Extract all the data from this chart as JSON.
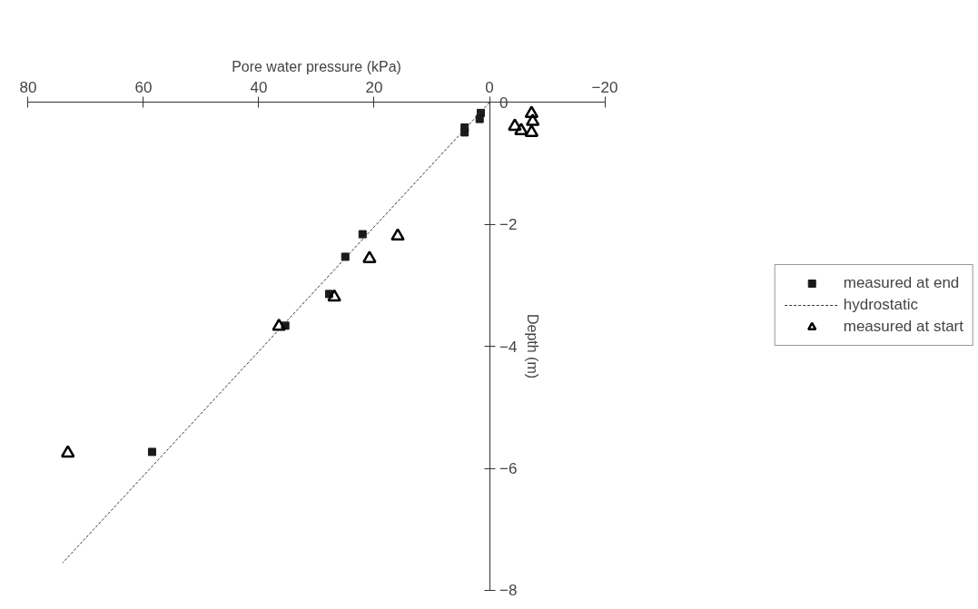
{
  "chart_data": {
    "type": "scatter",
    "xlabel": "Pore water pressure (kPa)",
    "ylabel": "Depth (m)",
    "xlim": [
      80,
      -20
    ],
    "xticks": [
      80,
      60,
      40,
      20,
      0,
      -20
    ],
    "ylim": [
      -8,
      0
    ],
    "yticks": [
      0,
      -2,
      -4,
      -6,
      -8
    ],
    "grid": false,
    "legend": "right",
    "series": [
      {
        "name": "measured at end",
        "marker": "square",
        "color": "#1a1a1a",
        "x": [
          1.5,
          1.7,
          4.3,
          4.3,
          22.0,
          25.0,
          27.8,
          35.4,
          58.5
        ],
        "values": [
          -0.17,
          -0.27,
          -0.41,
          -0.49,
          -2.16,
          -2.53,
          -3.14,
          -3.66,
          -5.73
        ]
      },
      {
        "name": "hydrostatic",
        "type": "line",
        "line_style": "dashed",
        "color": "#333333",
        "x": [
          0,
          74
        ],
        "values": [
          0,
          -7.55
        ]
      },
      {
        "name": "measured at start",
        "marker": "triangle",
        "color": "#000000",
        "x": [
          -4.4,
          -5.5,
          -7.3,
          -7.5,
          -7.3,
          15.9,
          20.8,
          26.9,
          36.5,
          73.1
        ],
        "values": [
          -0.39,
          -0.46,
          -0.18,
          -0.31,
          -0.49,
          -2.19,
          -2.56,
          -3.19,
          -3.67,
          -5.75
        ]
      }
    ]
  }
}
